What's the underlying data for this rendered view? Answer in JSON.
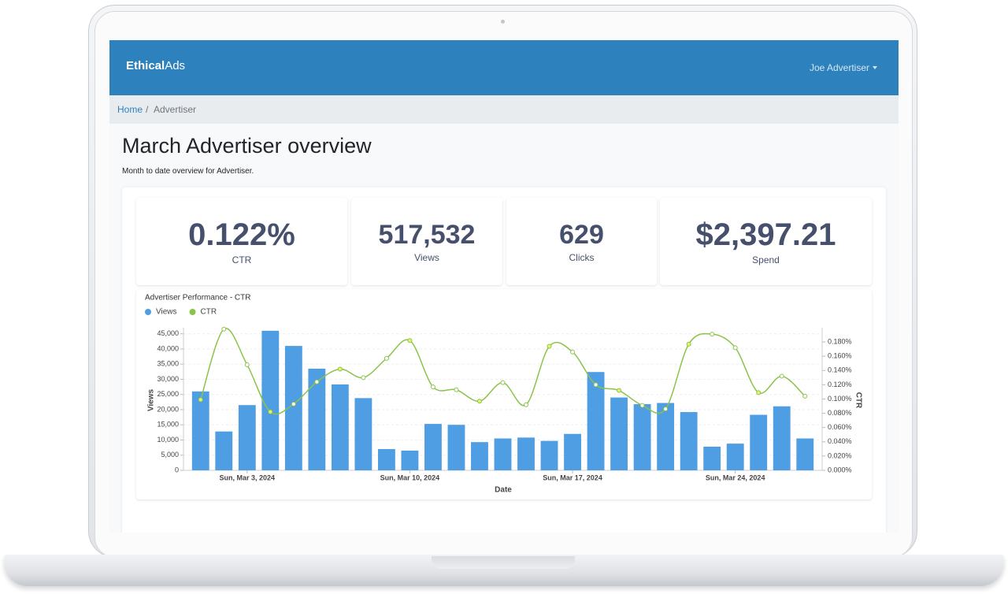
{
  "header": {
    "brand": [
      "Ethical",
      "Ads"
    ],
    "user": "Joe Advertiser"
  },
  "breadcrumb": [
    "Home",
    "Advertiser"
  ],
  "page": {
    "title": "March Advertiser overview",
    "subtitle": "Month to date overview for Advertiser."
  },
  "stats": [
    {
      "value": "0.122%",
      "label": "CTR"
    },
    {
      "value": "517,532",
      "label": "Views"
    },
    {
      "value": "629",
      "label": "Clicks"
    },
    {
      "value": "$2,397.21",
      "label": "Spend"
    }
  ],
  "chart_data": {
    "type": "bar",
    "title": "Advertiser Performance - CTR",
    "x_label": "Date",
    "y_label": "Views",
    "y2_label": "CTR",
    "categories": [
      null,
      null,
      "Sun, Mar 3, 2024",
      null,
      null,
      null,
      null,
      null,
      null,
      "Sun, Mar 10, 2024",
      null,
      null,
      null,
      null,
      null,
      null,
      "Sun, Mar 17, 2024",
      null,
      null,
      null,
      null,
      null,
      null,
      "Sun, Mar 24, 2024",
      null,
      null,
      null
    ],
    "series": [
      {
        "name": "Views",
        "type": "bar",
        "color": "#4f9de3",
        "values": [
          26000,
          12800,
          21500,
          46000,
          41000,
          33500,
          28300,
          23800,
          7000,
          6500,
          15300,
          15000,
          9300,
          10500,
          10800,
          9700,
          12000,
          32400,
          24000,
          21800,
          22200,
          19200,
          7800,
          8800,
          18300,
          21100,
          10500
        ]
      },
      {
        "name": "CTR",
        "type": "line",
        "axis": "y2",
        "color": "#8bc34a",
        "values": [
          0.099,
          0.198,
          0.148,
          0.082,
          0.093,
          0.124,
          0.142,
          0.13,
          0.157,
          0.182,
          0.117,
          0.113,
          0.097,
          0.123,
          0.092,
          0.174,
          0.166,
          0.12,
          0.112,
          0.091,
          0.086,
          0.177,
          0.191,
          0.172,
          0.109,
          0.132,
          0.104
        ]
      }
    ],
    "ylim": [
      0,
      47000
    ],
    "yticks": [
      0,
      {
        "value": 5000,
        "label": "5,000"
      },
      {
        "value": 10000,
        "label": "10,000"
      },
      {
        "value": 15000,
        "label": "15,000"
      },
      {
        "value": 20000,
        "label": "20,000"
      },
      {
        "value": 25000,
        "label": "25,000"
      },
      {
        "value": 30000,
        "label": "30,000"
      },
      {
        "value": 35000,
        "label": "35,000"
      },
      {
        "value": 40000,
        "label": "40,000"
      },
      {
        "value": 45000,
        "label": "45,000"
      }
    ],
    "y2lim": [
      0,
      0.2
    ],
    "y2ticks": [
      {
        "value": 0,
        "label": "0.000%"
      },
      {
        "value": 0.02,
        "label": "0.020%"
      },
      {
        "value": 0.04,
        "label": "0.040%"
      },
      {
        "value": 0.06,
        "label": "0.060%"
      },
      {
        "value": 0.08,
        "label": "0.080%"
      },
      {
        "value": 0.1,
        "label": "0.100%"
      },
      {
        "value": 0.12,
        "label": "0.120%"
      },
      {
        "value": 0.14,
        "label": "0.140%"
      },
      {
        "value": 0.16,
        "label": "0.160%"
      },
      {
        "value": 0.18,
        "label": "0.180%"
      }
    ],
    "grid": true,
    "legend": "top-left"
  }
}
